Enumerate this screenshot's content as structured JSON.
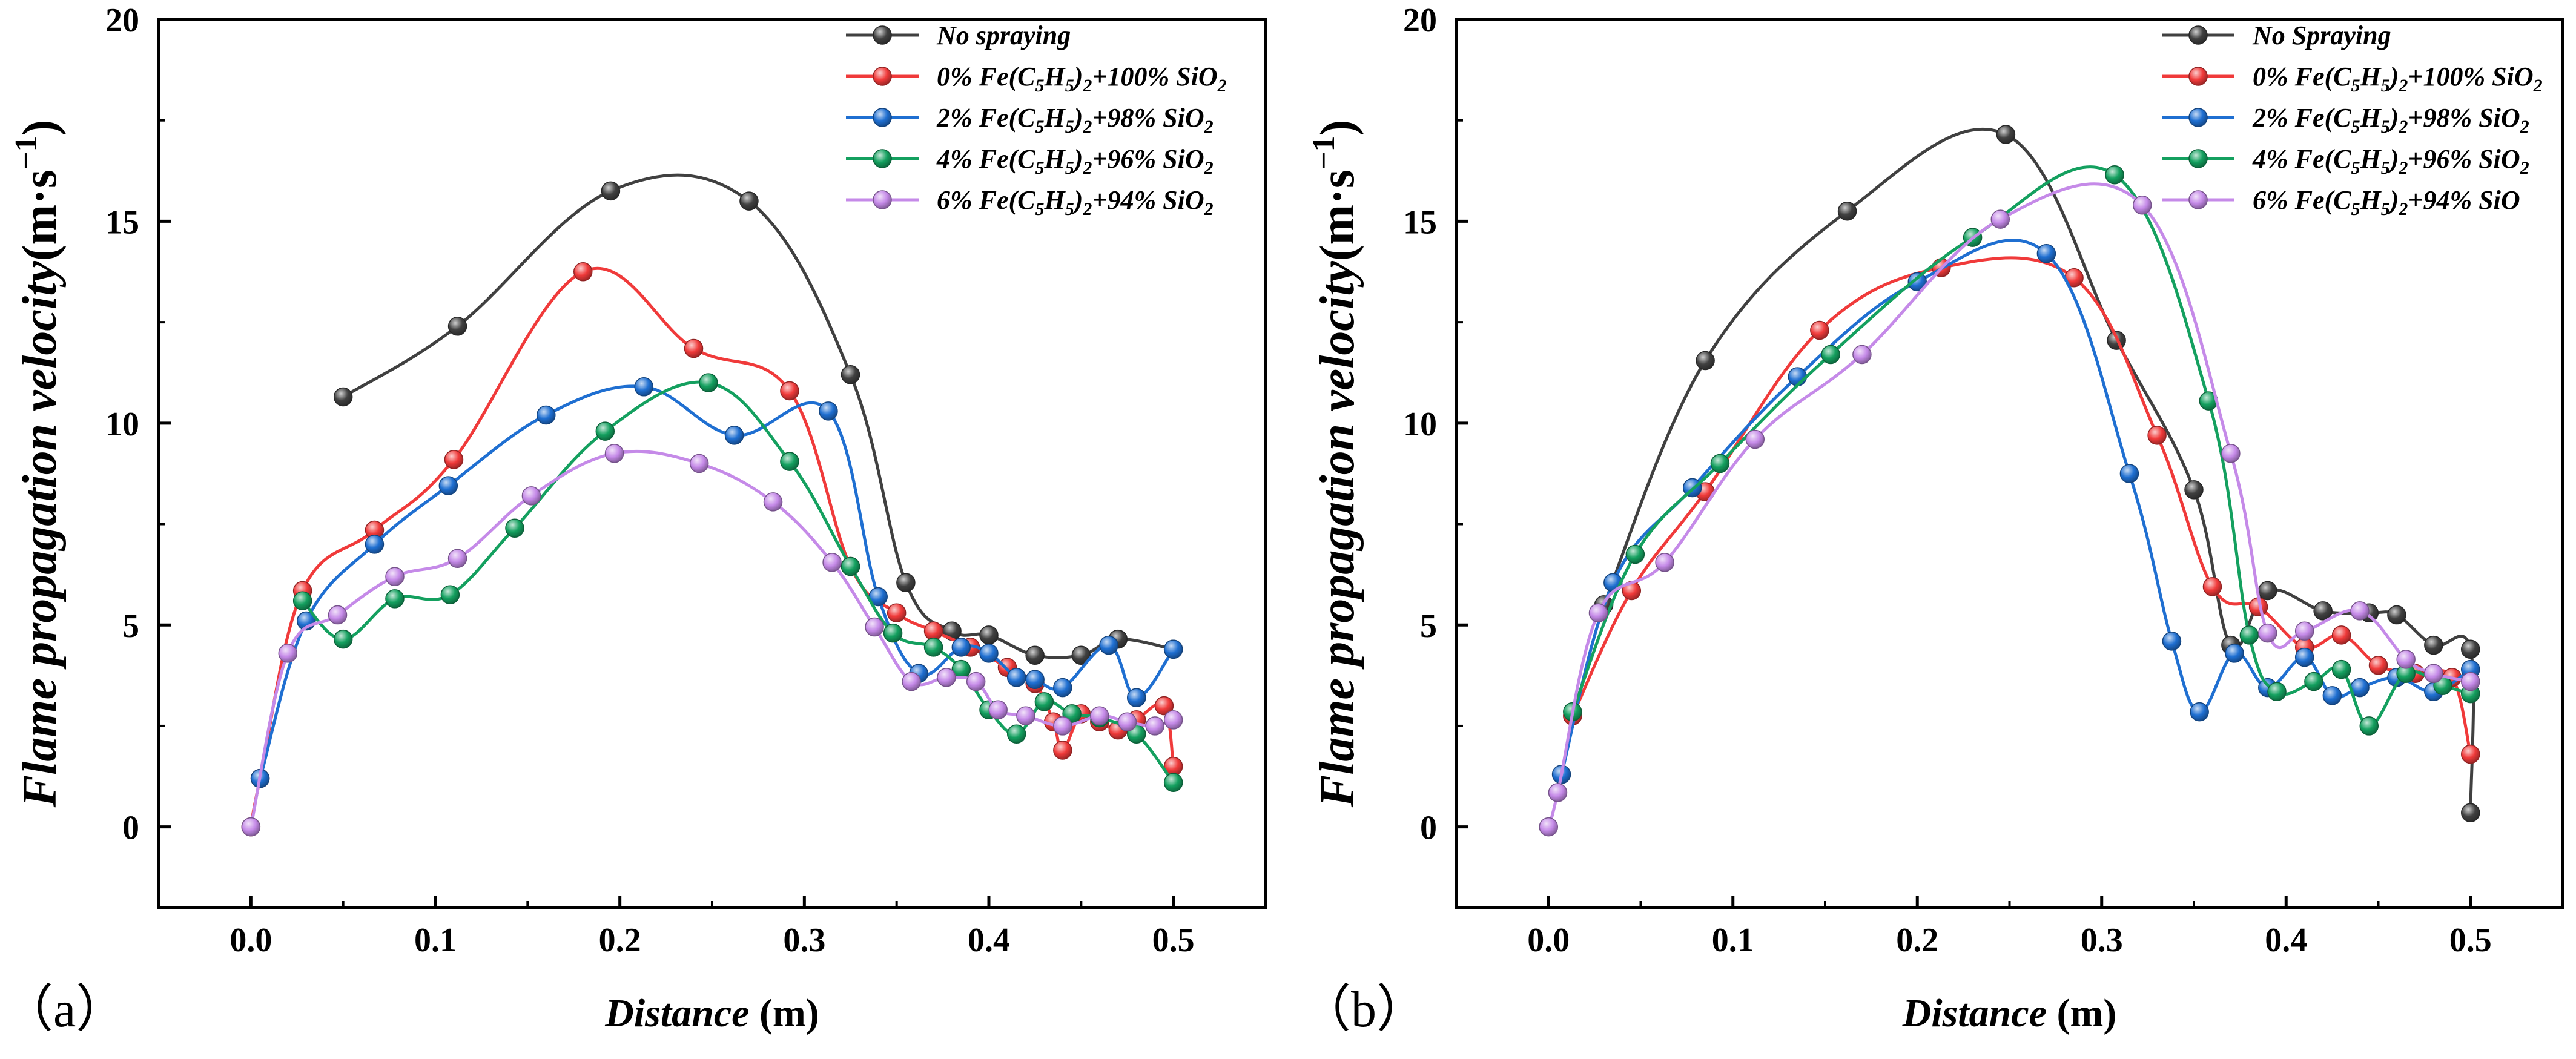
{
  "panels": [
    {
      "panel_label": "（a）",
      "xlabel": "Distance",
      "xlabel_unit": " (m)",
      "ylabel": "Flame propagation velocity",
      "ylabel_unit": "(m·s",
      "ylabel_sup": "−1",
      "ylabel_close": ")"
    },
    {
      "panel_label": "（b）",
      "xlabel": "Distance",
      "xlabel_unit": " (m)",
      "ylabel": "Flame propagation velocity",
      "ylabel_unit": "(m·s",
      "ylabel_sup": "−1",
      "ylabel_close": ")"
    }
  ],
  "chart_data": [
    {
      "type": "line",
      "xlim": [
        -0.05,
        0.55
      ],
      "ylim": [
        -2,
        20
      ],
      "x_ticks": [
        "0.0",
        "0.1",
        "0.2",
        "0.3",
        "0.4",
        "0.5"
      ],
      "y_ticks": [
        "0",
        "5",
        "10",
        "15",
        "20"
      ],
      "legend_position": "top-right",
      "grid": false,
      "series": [
        {
          "name": "No spraying",
          "legend_main": "No spraying",
          "legend_parts": [],
          "color": "#404040",
          "points": [
            [
              0.05,
              10.65
            ],
            [
              0.112,
              12.4
            ],
            [
              0.195,
              15.75
            ],
            [
              0.27,
              15.5
            ],
            [
              0.325,
              11.2
            ],
            [
              0.355,
              6.05
            ],
            [
              0.38,
              4.85
            ],
            [
              0.4,
              4.75
            ],
            [
              0.425,
              4.25
            ],
            [
              0.45,
              4.25
            ],
            [
              0.47,
              4.65
            ],
            [
              0.5,
              4.4
            ]
          ]
        },
        {
          "name": "0% Fe(C5H5)2+100% SiO2",
          "legend_main": "",
          "legend_parts": [
            "0% Fe(C",
            "5",
            "H",
            "5",
            ")",
            "2",
            "+100% SiO",
            "2"
          ],
          "color": "#f03a3a",
          "points": [
            [
              0.0,
              0.0
            ],
            [
              0.005,
              1.2
            ],
            [
              0.028,
              5.85
            ],
            [
              0.067,
              7.35
            ],
            [
              0.11,
              9.1
            ],
            [
              0.18,
              13.75
            ],
            [
              0.24,
              11.85
            ],
            [
              0.292,
              10.8
            ],
            [
              0.325,
              6.45
            ],
            [
              0.35,
              5.3
            ],
            [
              0.37,
              4.85
            ],
            [
              0.39,
              4.45
            ],
            [
              0.41,
              3.95
            ],
            [
              0.425,
              3.55
            ],
            [
              0.435,
              2.6
            ],
            [
              0.44,
              1.9
            ],
            [
              0.45,
              2.8
            ],
            [
              0.46,
              2.6
            ],
            [
              0.47,
              2.4
            ],
            [
              0.48,
              2.65
            ],
            [
              0.495,
              3.0
            ],
            [
              0.5,
              1.5
            ]
          ]
        },
        {
          "name": "2% Fe(C5H5)2+98% SiO2",
          "legend_main": "",
          "legend_parts": [
            "2% Fe(C",
            "5",
            "H",
            "5",
            ")",
            "2",
            "+98% SiO",
            "2"
          ],
          "color": "#1f6fd1",
          "points": [
            [
              0.005,
              1.2
            ],
            [
              0.03,
              5.1
            ],
            [
              0.067,
              7.0
            ],
            [
              0.107,
              8.45
            ],
            [
              0.16,
              10.2
            ],
            [
              0.213,
              10.9
            ],
            [
              0.262,
              9.7
            ],
            [
              0.313,
              10.3
            ],
            [
              0.34,
              5.7
            ],
            [
              0.362,
              3.8
            ],
            [
              0.385,
              4.45
            ],
            [
              0.4,
              4.3
            ],
            [
              0.415,
              3.7
            ],
            [
              0.425,
              3.65
            ],
            [
              0.44,
              3.45
            ],
            [
              0.465,
              4.5
            ],
            [
              0.48,
              3.2
            ],
            [
              0.5,
              4.4
            ]
          ]
        },
        {
          "name": "4% Fe(C5H5)2+96% SiO2",
          "legend_main": "",
          "legend_parts": [
            "4% Fe(C",
            "5",
            "H",
            "5",
            ")",
            "2",
            "+96% SiO",
            "2"
          ],
          "color": "#14a05f",
          "points": [
            [
              0.028,
              5.6
            ],
            [
              0.05,
              4.65
            ],
            [
              0.078,
              5.65
            ],
            [
              0.108,
              5.75
            ],
            [
              0.143,
              7.4
            ],
            [
              0.192,
              9.8
            ],
            [
              0.248,
              11.0
            ],
            [
              0.292,
              9.05
            ],
            [
              0.325,
              6.45
            ],
            [
              0.348,
              4.8
            ],
            [
              0.37,
              4.45
            ],
            [
              0.385,
              3.9
            ],
            [
              0.4,
              2.9
            ],
            [
              0.415,
              2.3
            ],
            [
              0.43,
              3.1
            ],
            [
              0.445,
              2.8
            ],
            [
              0.46,
              2.7
            ],
            [
              0.48,
              2.3
            ],
            [
              0.5,
              1.1
            ]
          ]
        },
        {
          "name": "6% Fe(C5H5)2+94% SiO2",
          "legend_main": "",
          "legend_parts": [
            "6% Fe(C",
            "5",
            "H",
            "5",
            ")",
            "2",
            "+94% SiO",
            "2"
          ],
          "color": "#c58ae8",
          "points": [
            [
              0.0,
              0.0
            ],
            [
              0.02,
              4.3
            ],
            [
              0.047,
              5.25
            ],
            [
              0.078,
              6.2
            ],
            [
              0.112,
              6.65
            ],
            [
              0.152,
              8.2
            ],
            [
              0.197,
              9.25
            ],
            [
              0.243,
              9.0
            ],
            [
              0.283,
              8.05
            ],
            [
              0.315,
              6.55
            ],
            [
              0.338,
              4.95
            ],
            [
              0.358,
              3.6
            ],
            [
              0.377,
              3.7
            ],
            [
              0.393,
              3.6
            ],
            [
              0.405,
              2.9
            ],
            [
              0.42,
              2.75
            ],
            [
              0.44,
              2.5
            ],
            [
              0.46,
              2.75
            ],
            [
              0.475,
              2.6
            ],
            [
              0.49,
              2.5
            ],
            [
              0.5,
              2.65
            ]
          ]
        }
      ]
    },
    {
      "type": "line",
      "xlim": [
        -0.05,
        0.55
      ],
      "ylim": [
        -2,
        20
      ],
      "x_ticks": [
        "0.0",
        "0.1",
        "0.2",
        "0.3",
        "0.4",
        "0.5"
      ],
      "y_ticks": [
        "0",
        "5",
        "10",
        "15",
        "20"
      ],
      "legend_position": "top-right",
      "grid": false,
      "series": [
        {
          "name": "No Spraying",
          "legend_main": "No Spraying",
          "legend_parts": [],
          "color": "#404040",
          "points": [
            [
              0.03,
              5.5
            ],
            [
              0.085,
              11.55
            ],
            [
              0.162,
              15.25
            ],
            [
              0.248,
              17.15
            ],
            [
              0.308,
              12.05
            ],
            [
              0.35,
              8.35
            ],
            [
              0.37,
              4.5
            ],
            [
              0.39,
              5.85
            ],
            [
              0.42,
              5.35
            ],
            [
              0.445,
              5.3
            ],
            [
              0.46,
              5.25
            ],
            [
              0.48,
              4.5
            ],
            [
              0.5,
              4.4
            ],
            [
              0.5,
              0.35
            ]
          ]
        },
        {
          "name": "0% Fe(C5H5)2+100% SiO2",
          "legend_main": "",
          "legend_parts": [
            "0% Fe(C",
            "5",
            "H",
            "5",
            ")",
            "2",
            "+100% SiO",
            "2"
          ],
          "color": "#f03a3a",
          "points": [
            [
              0.013,
              2.75
            ],
            [
              0.045,
              5.85
            ],
            [
              0.085,
              8.3
            ],
            [
              0.147,
              12.3
            ],
            [
              0.213,
              13.85
            ],
            [
              0.285,
              13.6
            ],
            [
              0.33,
              9.7
            ],
            [
              0.36,
              5.95
            ],
            [
              0.385,
              5.45
            ],
            [
              0.41,
              4.45
            ],
            [
              0.43,
              4.75
            ],
            [
              0.45,
              4.0
            ],
            [
              0.47,
              3.8
            ],
            [
              0.49,
              3.7
            ],
            [
              0.5,
              1.8
            ]
          ]
        },
        {
          "name": "2% Fe(C5H5)2+98% SiO2",
          "legend_main": "",
          "legend_parts": [
            "2% Fe(C",
            "5",
            "H",
            "5",
            ")",
            "2",
            "+98% SiO",
            "2"
          ],
          "color": "#1f6fd1",
          "points": [
            [
              0.007,
              1.3
            ],
            [
              0.035,
              6.05
            ],
            [
              0.078,
              8.4
            ],
            [
              0.135,
              11.15
            ],
            [
              0.2,
              13.5
            ],
            [
              0.27,
              14.2
            ],
            [
              0.315,
              8.75
            ],
            [
              0.338,
              4.6
            ],
            [
              0.353,
              2.85
            ],
            [
              0.372,
              4.3
            ],
            [
              0.39,
              3.45
            ],
            [
              0.41,
              4.2
            ],
            [
              0.425,
              3.25
            ],
            [
              0.44,
              3.45
            ],
            [
              0.46,
              3.7
            ],
            [
              0.48,
              3.35
            ],
            [
              0.5,
              3.9
            ]
          ]
        },
        {
          "name": "4% Fe(C5H5)2+96% SiO2",
          "legend_main": "",
          "legend_parts": [
            "4% Fe(C",
            "5",
            "H",
            "5",
            ")",
            "2",
            "+96% SiO",
            "2"
          ],
          "color": "#14a05f",
          "points": [
            [
              0.013,
              2.85
            ],
            [
              0.047,
              6.75
            ],
            [
              0.093,
              9.0
            ],
            [
              0.153,
              11.7
            ],
            [
              0.23,
              14.6
            ],
            [
              0.307,
              16.15
            ],
            [
              0.358,
              10.55
            ],
            [
              0.38,
              4.75
            ],
            [
              0.395,
              3.35
            ],
            [
              0.415,
              3.6
            ],
            [
              0.43,
              3.9
            ],
            [
              0.445,
              2.5
            ],
            [
              0.465,
              3.8
            ],
            [
              0.485,
              3.5
            ],
            [
              0.5,
              3.3
            ]
          ]
        },
        {
          "name": "6% Fe(C5H5)2+94% SiO",
          "legend_main": "",
          "legend_parts": [
            "6% Fe(C",
            "5",
            "H",
            "5",
            ")",
            "2",
            "+94% SiO"
          ],
          "color": "#c58ae8",
          "points": [
            [
              0.0,
              0.0
            ],
            [
              0.005,
              0.85
            ],
            [
              0.027,
              5.3
            ],
            [
              0.063,
              6.55
            ],
            [
              0.112,
              9.6
            ],
            [
              0.17,
              11.7
            ],
            [
              0.245,
              15.05
            ],
            [
              0.322,
              15.4
            ],
            [
              0.37,
              9.25
            ],
            [
              0.39,
              4.8
            ],
            [
              0.41,
              4.85
            ],
            [
              0.44,
              5.35
            ],
            [
              0.465,
              4.15
            ],
            [
              0.48,
              3.8
            ],
            [
              0.5,
              3.6
            ]
          ]
        }
      ]
    }
  ]
}
